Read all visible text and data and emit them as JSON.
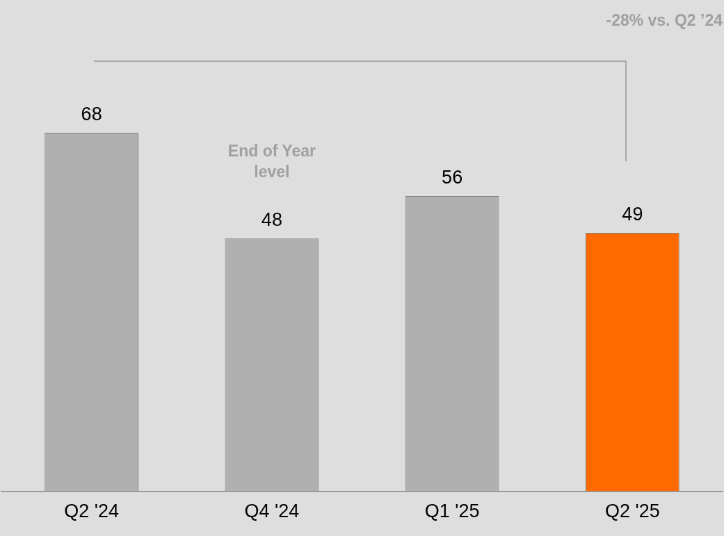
{
  "chart_data": {
    "type": "bar",
    "categories": [
      "Q2 '24",
      "Q4 '24",
      "Q1 '25",
      "Q2 '25"
    ],
    "values": [
      68,
      48,
      56,
      49
    ],
    "colors": [
      "#b0b0b0",
      "#b0b0b0",
      "#b0b0b0",
      "#ff6a00"
    ],
    "data_labels": true,
    "grid": false,
    "legend": false,
    "tick_labels": "x",
    "annotations": [
      "-28% vs. Q2 ’24",
      "End of Year level"
    ]
  }
}
